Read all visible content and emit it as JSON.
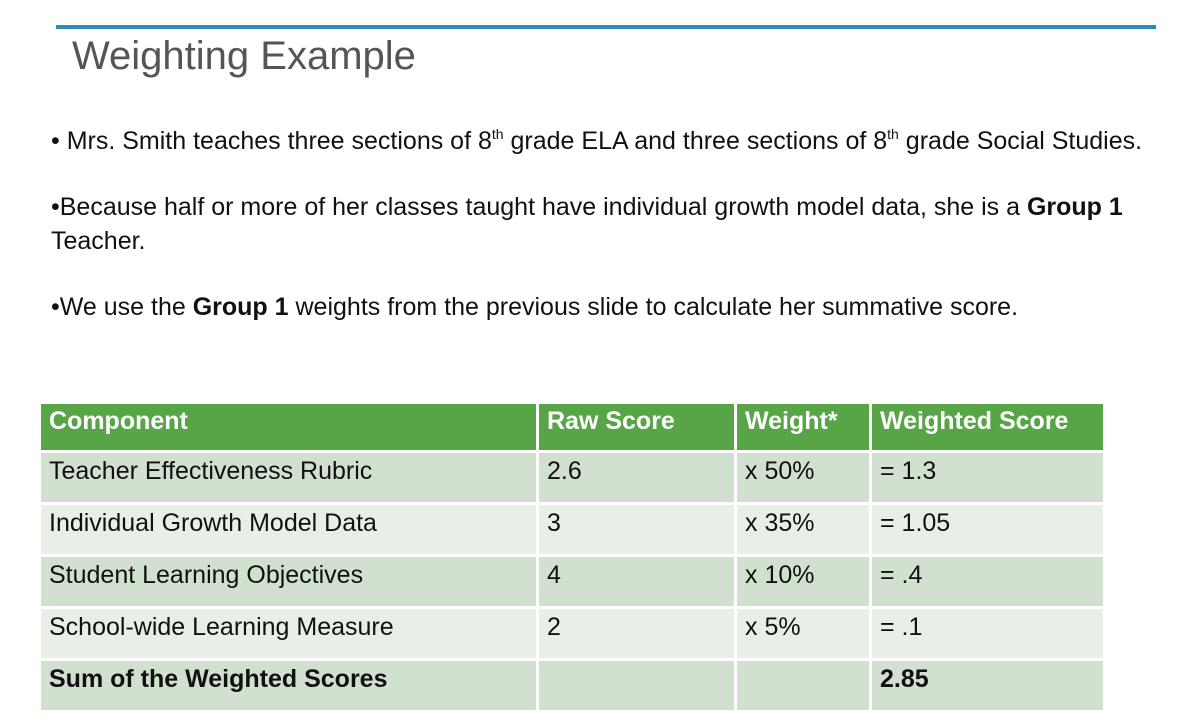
{
  "title": "Weighting Example",
  "bullets": {
    "b1": {
      "p1": "• Mrs. Smith teaches three sections of 8",
      "sup1": "th",
      "p2": " grade ELA and three sections of 8",
      "sup2": "th",
      "p3": " grade Social Studies."
    },
    "b2": {
      "p1": "•Because half or more of her classes taught have individual growth model data, she is a ",
      "bold": "Group 1",
      "p2": " Teacher."
    },
    "b3": {
      "p1": "•We use the ",
      "bold": "Group 1",
      "p2": " weights from the previous slide to calculate her summative score."
    }
  },
  "table": {
    "headers": [
      "Component",
      "Raw Score",
      "Weight*",
      "Weighted Score"
    ],
    "rows": [
      [
        "Teacher Effectiveness Rubric",
        "2.6",
        "x  50%",
        "= 1.3"
      ],
      [
        "Individual Growth Model Data",
        "3",
        "x  35%",
        "= 1.05"
      ],
      [
        "Student Learning Objectives",
        "4",
        "x 10%",
        "= .4"
      ],
      [
        "School-wide Learning Measure",
        "2",
        "x 5%",
        "= .1"
      ],
      [
        "Sum of the Weighted Scores",
        "",
        "",
        "2.85"
      ]
    ]
  },
  "colors": {
    "accent_rule": "#2e8bb8",
    "header_fill": "#58a548",
    "row_dark": "#d1e0cf",
    "row_light": "#e8efe6"
  }
}
